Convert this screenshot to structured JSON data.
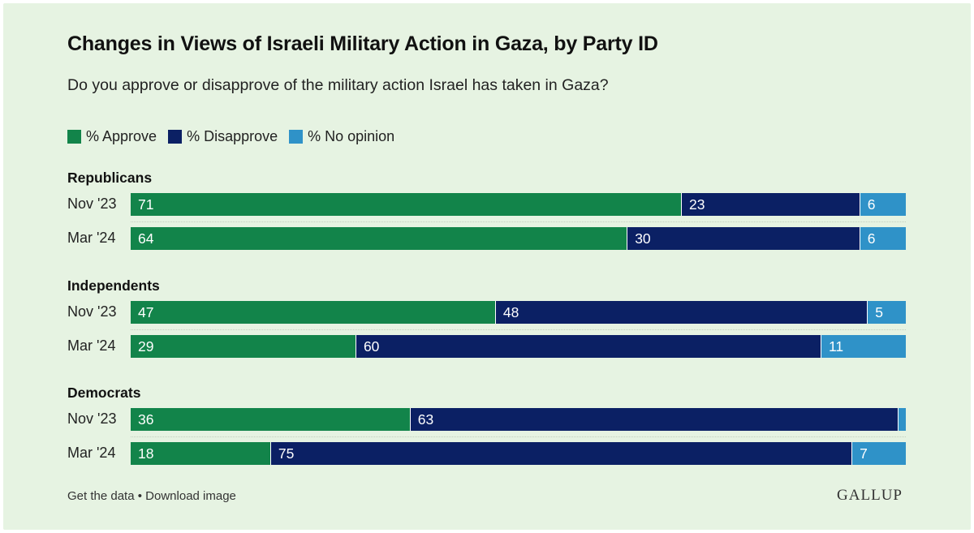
{
  "title": "Changes in Views of Israeli Military Action in Gaza, by Party ID",
  "subtitle": "Do you approve or disapprove of the military action Israel has taken in Gaza?",
  "footer": {
    "get_data": "Get the data",
    "separator": "•",
    "download": "Download image",
    "logo": "GALLUP"
  },
  "colors": {
    "approve": "#12844a",
    "disapprove": "#0b2064",
    "no_opinion": "#2f92c8"
  },
  "chart_data": {
    "type": "bar",
    "orientation": "horizontal",
    "stacked": true,
    "title": "Changes in Views of Israeli Military Action in Gaza, by Party ID",
    "subtitle": "Do you approve or disapprove of the military action Israel has taken in Gaza?",
    "legend": [
      "% Approve",
      "% Disapprove",
      "% No opinion"
    ],
    "legend_position": "top-left",
    "xlim": [
      0,
      100
    ],
    "groups": [
      {
        "name": "Republicans",
        "rows": [
          {
            "label": "Nov '23",
            "values": [
              71,
              23,
              6
            ],
            "labels": [
              "71",
              "23",
              "6"
            ]
          },
          {
            "label": "Mar '24",
            "values": [
              64,
              30,
              6
            ],
            "labels": [
              "64",
              "30",
              "6"
            ]
          }
        ]
      },
      {
        "name": "Independents",
        "rows": [
          {
            "label": "Nov '23",
            "values": [
              47,
              48,
              5
            ],
            "labels": [
              "47",
              "48",
              "5"
            ]
          },
          {
            "label": "Mar '24",
            "values": [
              29,
              60,
              11
            ],
            "labels": [
              "29",
              "60",
              "11"
            ]
          }
        ]
      },
      {
        "name": "Democrats",
        "rows": [
          {
            "label": "Nov '23",
            "values": [
              36,
              63,
              1
            ],
            "labels": [
              "36",
              "63",
              ""
            ]
          },
          {
            "label": "Mar '24",
            "values": [
              18,
              75,
              7
            ],
            "labels": [
              "18",
              "75",
              "7"
            ]
          }
        ]
      }
    ]
  }
}
